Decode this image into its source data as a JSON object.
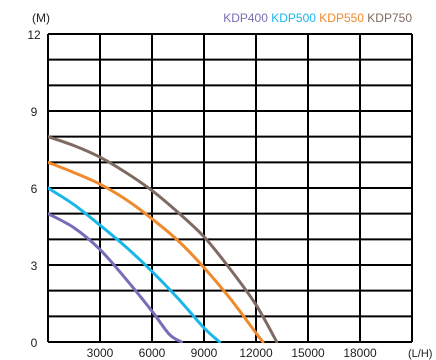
{
  "chart_data": {
    "type": "line",
    "title": "",
    "xlabel": "(L/H)",
    "ylabel": "(M)",
    "xlim": [
      0,
      21000
    ],
    "ylim": [
      0,
      12
    ],
    "xticks": [
      3000,
      6000,
      9000,
      12000,
      15000,
      18000
    ],
    "xtick_labels": [
      "3000",
      "6000",
      "9000",
      "12000",
      "15000",
      "18000"
    ],
    "yticks": [
      0,
      3,
      6,
      9,
      12
    ],
    "ytick_labels": [
      "0",
      "3",
      "6",
      "9",
      "12"
    ],
    "grid": true,
    "legend_position": "top-right",
    "series": [
      {
        "name": "KDP400",
        "color": "#7b6bb8",
        "x": [
          0,
          1500,
          3000,
          4500,
          6000,
          7000,
          7700
        ],
        "y": [
          5.0,
          4.45,
          3.6,
          2.45,
          1.2,
          0.3,
          0
        ]
      },
      {
        "name": "KDP500",
        "color": "#19b6ea",
        "x": [
          0,
          1500,
          3000,
          4500,
          6000,
          7500,
          9000,
          9900
        ],
        "y": [
          6.0,
          5.35,
          4.55,
          3.7,
          2.75,
          1.7,
          0.55,
          0
        ]
      },
      {
        "name": "KDP550",
        "color": "#f08a2d",
        "x": [
          0,
          1500,
          3000,
          4500,
          6000,
          7500,
          9000,
          10500,
          12000,
          12400
        ],
        "y": [
          7.0,
          6.6,
          6.15,
          5.55,
          4.8,
          3.95,
          2.9,
          1.7,
          0.35,
          0
        ]
      },
      {
        "name": "KDP750",
        "color": "#7e6a62",
        "x": [
          0,
          1500,
          3000,
          4500,
          6000,
          7500,
          9000,
          10500,
          12000,
          13200
        ],
        "y": [
          8.0,
          7.65,
          7.2,
          6.6,
          5.9,
          5.05,
          4.1,
          2.85,
          1.45,
          0
        ]
      }
    ]
  }
}
